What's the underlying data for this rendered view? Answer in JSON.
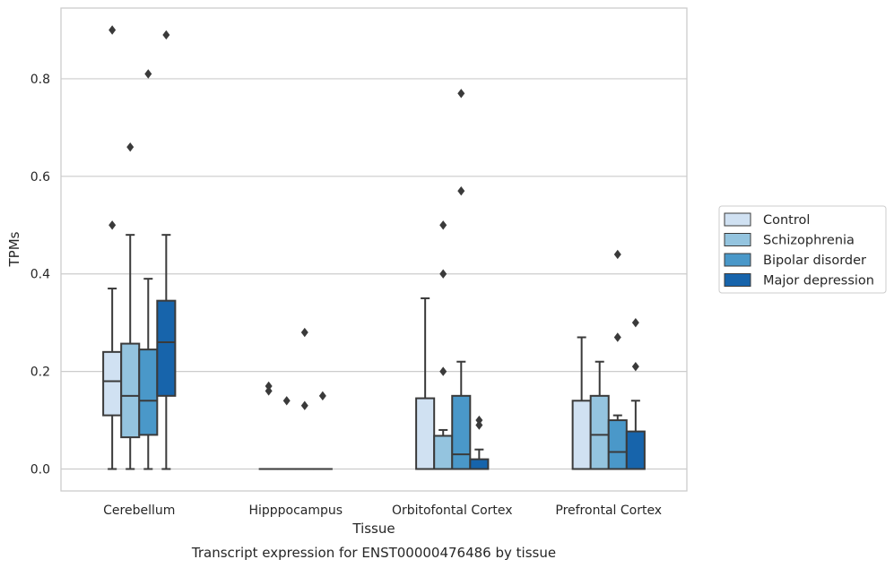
{
  "chart_data": {
    "type": "box",
    "caption": "Transcript expression for ENST00000476486 by tissue",
    "xlabel": "Tissue",
    "ylabel": "TPMs",
    "ylim": [
      -0.045,
      0.945
    ],
    "yticks": [
      0.0,
      0.2,
      0.4,
      0.6,
      0.8
    ],
    "ytick_labels": [
      "0.0",
      "0.2",
      "0.4",
      "0.6",
      "0.8"
    ],
    "grid": "horizontal",
    "legend_position": "right",
    "categories": [
      "Cerebellum",
      "Hipppocampus",
      "Orbitofontal Cortex",
      "Prefrontal Cortex"
    ],
    "series": [
      {
        "name": "Control",
        "color": "#d0e1f2",
        "boxes": [
          {
            "whisker_low": 0.0,
            "q1": 0.11,
            "median": 0.18,
            "q3": 0.24,
            "whisker_high": 0.37,
            "outliers": [
              0.9,
              0.5
            ]
          },
          {
            "whisker_low": 0.0,
            "q1": 0.0,
            "median": 0.0,
            "q3": 0.0,
            "whisker_high": 0.0,
            "outliers": [
              0.17,
              0.16
            ]
          },
          {
            "whisker_low": 0.0,
            "q1": 0.0,
            "median": 0.0,
            "q3": 0.145,
            "whisker_high": 0.35,
            "outliers": []
          },
          {
            "whisker_low": 0.0,
            "q1": 0.0,
            "median": 0.0,
            "q3": 0.14,
            "whisker_high": 0.27,
            "outliers": []
          }
        ]
      },
      {
        "name": "Schizophrenia",
        "color": "#94c4df",
        "boxes": [
          {
            "whisker_low": 0.0,
            "q1": 0.065,
            "median": 0.15,
            "q3": 0.257,
            "whisker_high": 0.48,
            "outliers": [
              0.66
            ]
          },
          {
            "whisker_low": 0.0,
            "q1": 0.0,
            "median": 0.0,
            "q3": 0.0,
            "whisker_high": 0.0,
            "outliers": [
              0.14
            ]
          },
          {
            "whisker_low": 0.0,
            "q1": 0.0,
            "median": 0.0,
            "q3": 0.068,
            "whisker_high": 0.08,
            "outliers": [
              0.5,
              0.4,
              0.2
            ]
          },
          {
            "whisker_low": 0.0,
            "q1": 0.0,
            "median": 0.07,
            "q3": 0.15,
            "whisker_high": 0.22,
            "outliers": []
          }
        ]
      },
      {
        "name": "Bipolar disorder",
        "color": "#4a98c9",
        "boxes": [
          {
            "whisker_low": 0.0,
            "q1": 0.07,
            "median": 0.14,
            "q3": 0.245,
            "whisker_high": 0.39,
            "outliers": [
              0.81
            ]
          },
          {
            "whisker_low": 0.0,
            "q1": 0.0,
            "median": 0.0,
            "q3": 0.0,
            "whisker_high": 0.0,
            "outliers": [
              0.28,
              0.13
            ]
          },
          {
            "whisker_low": 0.0,
            "q1": 0.0,
            "median": 0.03,
            "q3": 0.15,
            "whisker_high": 0.22,
            "outliers": [
              0.77,
              0.57
            ]
          },
          {
            "whisker_low": 0.0,
            "q1": 0.0,
            "median": 0.035,
            "q3": 0.1,
            "whisker_high": 0.11,
            "outliers": [
              0.44,
              0.27
            ]
          }
        ]
      },
      {
        "name": "Major depression",
        "color": "#1764ab",
        "boxes": [
          {
            "whisker_low": 0.0,
            "q1": 0.15,
            "median": 0.26,
            "q3": 0.345,
            "whisker_high": 0.48,
            "outliers": [
              0.89
            ]
          },
          {
            "whisker_low": 0.0,
            "q1": 0.0,
            "median": 0.0,
            "q3": 0.0,
            "whisker_high": 0.0,
            "outliers": [
              0.15
            ]
          },
          {
            "whisker_low": 0.0,
            "q1": 0.0,
            "median": 0.0,
            "q3": 0.02,
            "whisker_high": 0.04,
            "outliers": [
              0.1,
              0.09
            ]
          },
          {
            "whisker_low": 0.0,
            "q1": 0.0,
            "median": 0.0,
            "q3": 0.077,
            "whisker_high": 0.14,
            "outliers": [
              0.3,
              0.21
            ]
          }
        ]
      }
    ]
  }
}
